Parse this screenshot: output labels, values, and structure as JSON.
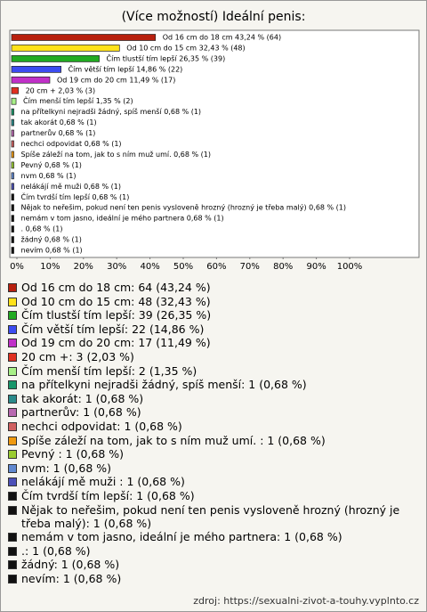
{
  "chart_data": {
    "type": "bar",
    "orientation": "horizontal",
    "title": "(Více možností) Ideální penis:",
    "bar_labels": [
      "Od 16 cm do 18 cm 43,24 % (64)",
      "Od 10 cm do 15 cm 32,43 % (48)",
      "Čím tlustší tím lepší 26,35 % (39)",
      "Čím větší tím lepší 14,86 % (22)",
      "Od 19 cm do 20 cm 11,49 % (17)",
      "20 cm + 2,03 % (3)",
      "Čím menší tím lepší 1,35 % (2)",
      "na přítelkyni nejradši žádný, spíš menší 0,68 % (1)",
      "tak akorát 0,68 % (1)",
      "partnerův 0,68 % (1)",
      "nechci odpovidat 0,68 % (1)",
      "Spíše záleží na tom, jak to s ním muž umí.   0,68 % (1)",
      "Pevný  0,68 % (1)",
      "nvm 0,68 % (1)",
      "nelákájí mě muži  0,68 % (1)",
      "Čím tvrdší tím lepší 0,68 % (1)",
      "Nějak to neřešim, pokud není ten penis vysloveně hrozný (hrozný je třeba malý) 0,68 % (1)",
      "nemám v tom jasno, ideální je mého partnera 0,68 % (1)",
      ". 0,68 % (1)",
      "žádný 0,68 % (1)",
      "nevím 0,68 % (1)"
    ],
    "legend_labels": [
      "Od 16 cm do 18 cm: 64 (43,24 %)",
      "Od 10 cm do 15 cm: 48 (32,43 %)",
      "Čím tlustší tím lepší: 39 (26,35 %)",
      "Čím větší tím lepší: 22 (14,86 %)",
      "Od 19 cm do 20 cm: 17 (11,49 %)",
      "20 cm +: 3 (2,03 %)",
      "Čím menší tím lepší: 2 (1,35 %)",
      "na přítelkyni nejradši žádný, spíš menší: 1 (0,68 %)",
      "tak akorát: 1 (0,68 %)",
      "partnerův: 1 (0,68 %)",
      "nechci odpovidat: 1 (0,68 %)",
      "Spíše záleží na tom, jak to s ním muž umí.   : 1 (0,68 %)",
      "Pevný : 1 (0,68 %)",
      "nvm: 1 (0,68 %)",
      "nelákájí mě muži : 1 (0,68 %)",
      "Čím tvrdší tím lepší: 1 (0,68 %)",
      "Nějak to neřešim, pokud není ten penis vysloveně hrozný (hrozný je třeba malý): 1 (0,68 %)",
      "nemám v tom jasno, ideální je mého partnera: 1 (0,68 %)",
      ".: 1 (0,68 %)",
      "žádný: 1 (0,68 %)",
      "nevím: 1 (0,68 %)"
    ],
    "values": [
      43.24,
      32.43,
      26.35,
      14.86,
      11.49,
      2.03,
      1.35,
      0.68,
      0.68,
      0.68,
      0.68,
      0.68,
      0.68,
      0.68,
      0.68,
      0.68,
      0.68,
      0.68,
      0.68,
      0.68,
      0.68
    ],
    "colors": [
      "#b8200f",
      "#ffe21a",
      "#22aa22",
      "#3c4cf0",
      "#c030c8",
      "#e03020",
      "#a8f088",
      "#18966a",
      "#2a8a8a",
      "#b868b0",
      "#d06060",
      "#f09a10",
      "#9acc30",
      "#6088d0",
      "#4c50b8",
      "#111111",
      "#111111",
      "#111111",
      "#111111",
      "#111111",
      "#111111"
    ],
    "xlim": [
      0,
      100
    ],
    "xticks": [
      {
        "value": 0,
        "label": "0%"
      },
      {
        "value": 10,
        "label": "10%"
      },
      {
        "value": 20,
        "label": "20%"
      },
      {
        "value": 30,
        "label": "30%"
      },
      {
        "value": 40,
        "label": "40%"
      },
      {
        "value": 50,
        "label": "50%"
      },
      {
        "value": 60,
        "label": "60%"
      },
      {
        "value": 70,
        "label": "70%"
      },
      {
        "value": 80,
        "label": "80%"
      },
      {
        "value": 90,
        "label": "90%"
      },
      {
        "value": 100,
        "label": "100%"
      }
    ],
    "source": "zdroj: https://sexualni-zivot-a-touhy.vyplnto.cz"
  }
}
